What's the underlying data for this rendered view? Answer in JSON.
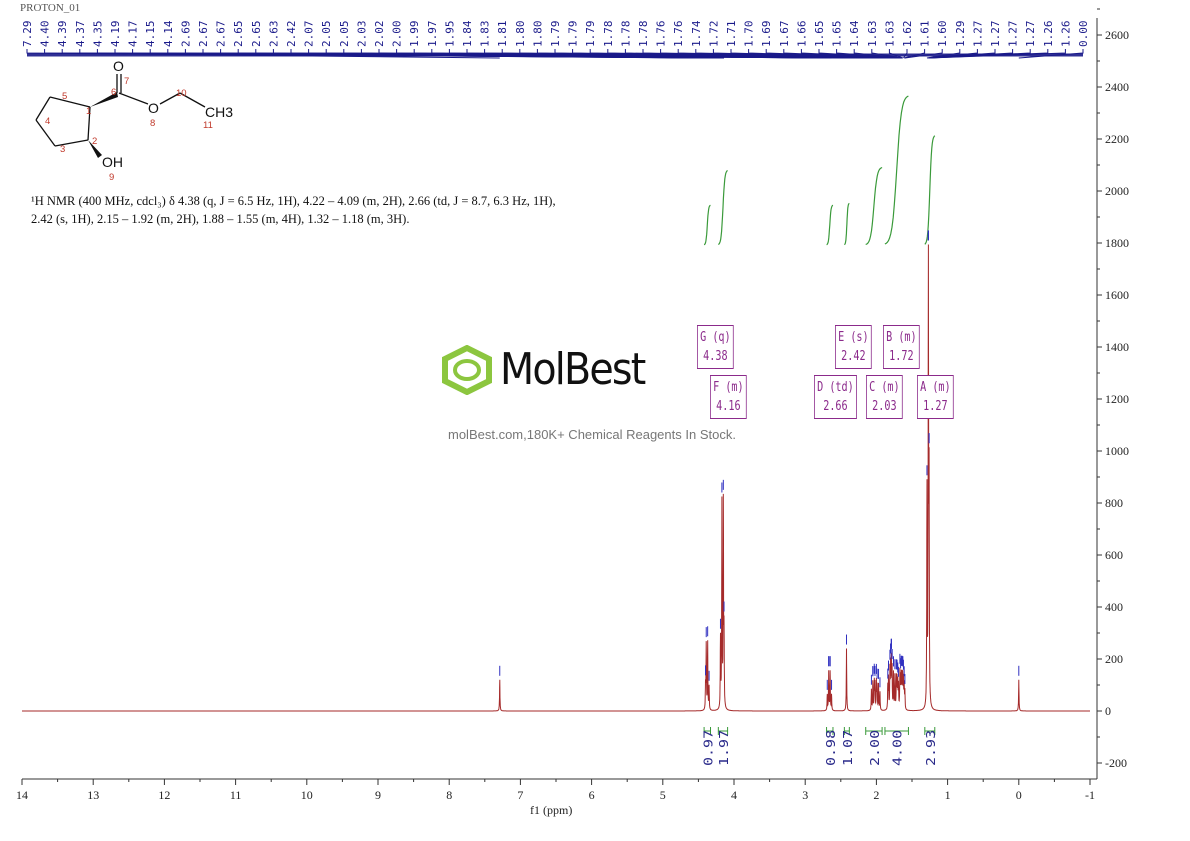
{
  "chart_data": {
    "type": "line",
    "title": "PROTON_01",
    "xlabel": "f1 (ppm)",
    "ylabel": "",
    "xlim": [
      14,
      -1
    ],
    "ylim": [
      -250,
      2650
    ],
    "x_reversed": true,
    "grid": false,
    "x_ticks": [
      "14",
      "13",
      "12",
      "11",
      "10",
      "9",
      "8",
      "7",
      "6",
      "5",
      "4",
      "3",
      "2",
      "1",
      "0",
      "-1"
    ],
    "y_ticks": [
      "-200",
      "0",
      "200",
      "400",
      "600",
      "800",
      "1000",
      "1200",
      "1400",
      "1600",
      "1800",
      "2000",
      "2200",
      "2400",
      "2600"
    ],
    "colors": {
      "spectrum": "#a52a2a",
      "peak_marker": "#1a1a9a",
      "integral": "#3a9a3a",
      "multiplet": "#8b2a8b",
      "peak_label": "#1a1a8a"
    },
    "peak_labels": [
      "7.29",
      "4.40",
      "4.39",
      "4.37",
      "4.35",
      "4.19",
      "4.17",
      "4.15",
      "4.14",
      "2.69",
      "2.67",
      "2.67",
      "2.65",
      "2.65",
      "2.63",
      "2.42",
      "2.07",
      "2.05",
      "2.05",
      "2.03",
      "2.02",
      "2.00",
      "1.99",
      "1.97",
      "1.95",
      "1.84",
      "1.83",
      "1.81",
      "1.80",
      "1.80",
      "1.79",
      "1.79",
      "1.79",
      "1.78",
      "1.78",
      "1.78",
      "1.76",
      "1.76",
      "1.74",
      "1.72",
      "1.71",
      "1.70",
      "1.69",
      "1.67",
      "1.66",
      "1.65",
      "1.65",
      "1.64",
      "1.63",
      "1.63",
      "1.62",
      "1.61",
      "1.60",
      "1.29",
      "1.27",
      "1.27",
      "1.27",
      "1.27",
      "1.26",
      "1.26",
      "0.00"
    ],
    "peaks": [
      {
        "ppm": 7.29,
        "intensity": 120
      },
      {
        "ppm": 4.4,
        "intensity": 90
      },
      {
        "ppm": 4.39,
        "intensity": 250
      },
      {
        "ppm": 4.37,
        "intensity": 260
      },
      {
        "ppm": 4.35,
        "intensity": 90
      },
      {
        "ppm": 4.19,
        "intensity": 270
      },
      {
        "ppm": 4.17,
        "intensity": 790
      },
      {
        "ppm": 4.15,
        "intensity": 780
      },
      {
        "ppm": 4.14,
        "intensity": 270
      },
      {
        "ppm": 2.69,
        "intensity": 60
      },
      {
        "ppm": 2.67,
        "intensity": 75
      },
      {
        "ppm": 2.67,
        "intensity": 75
      },
      {
        "ppm": 2.65,
        "intensity": 80
      },
      {
        "ppm": 2.65,
        "intensity": 70
      },
      {
        "ppm": 2.63,
        "intensity": 60
      },
      {
        "ppm": 2.42,
        "intensity": 240
      },
      {
        "ppm": 2.07,
        "intensity": 80
      },
      {
        "ppm": 2.05,
        "intensity": 55
      },
      {
        "ppm": 2.05,
        "intensity": 55
      },
      {
        "ppm": 2.03,
        "intensity": 110
      },
      {
        "ppm": 2.02,
        "intensity": 100
      },
      {
        "ppm": 2.0,
        "intensity": 110
      },
      {
        "ppm": 1.99,
        "intensity": 90
      },
      {
        "ppm": 1.97,
        "intensity": 100
      },
      {
        "ppm": 1.95,
        "intensity": 70
      },
      {
        "ppm": 1.84,
        "intensity": 90
      },
      {
        "ppm": 1.83,
        "intensity": 120
      },
      {
        "ppm": 1.81,
        "intensity": 150
      },
      {
        "ppm": 1.8,
        "intensity": 80
      },
      {
        "ppm": 1.8,
        "intensity": 80
      },
      {
        "ppm": 1.79,
        "intensity": 60
      },
      {
        "ppm": 1.79,
        "intensity": 60
      },
      {
        "ppm": 1.79,
        "intensity": 60
      },
      {
        "ppm": 1.78,
        "intensity": 50
      },
      {
        "ppm": 1.78,
        "intensity": 50
      },
      {
        "ppm": 1.78,
        "intensity": 50
      },
      {
        "ppm": 1.76,
        "intensity": 70
      },
      {
        "ppm": 1.76,
        "intensity": 70
      },
      {
        "ppm": 1.74,
        "intensity": 130
      },
      {
        "ppm": 1.72,
        "intensity": 120
      },
      {
        "ppm": 1.71,
        "intensity": 110
      },
      {
        "ppm": 1.7,
        "intensity": 100
      },
      {
        "ppm": 1.69,
        "intensity": 90
      },
      {
        "ppm": 1.67,
        "intensity": 140
      },
      {
        "ppm": 1.66,
        "intensity": 110
      },
      {
        "ppm": 1.65,
        "intensity": 60
      },
      {
        "ppm": 1.65,
        "intensity": 60
      },
      {
        "ppm": 1.64,
        "intensity": 120
      },
      {
        "ppm": 1.63,
        "intensity": 60
      },
      {
        "ppm": 1.63,
        "intensity": 60
      },
      {
        "ppm": 1.62,
        "intensity": 110
      },
      {
        "ppm": 1.61,
        "intensity": 90
      },
      {
        "ppm": 1.6,
        "intensity": 70
      },
      {
        "ppm": 1.29,
        "intensity": 830
      },
      {
        "ppm": 1.27,
        "intensity": 420
      },
      {
        "ppm": 1.27,
        "intensity": 420
      },
      {
        "ppm": 1.27,
        "intensity": 420
      },
      {
        "ppm": 1.27,
        "intensity": 420
      },
      {
        "ppm": 1.26,
        "intensity": 410
      },
      {
        "ppm": 1.26,
        "intensity": 410
      },
      {
        "ppm": 0.0,
        "intensity": 120
      }
    ],
    "integrals": [
      {
        "from": 4.42,
        "to": 4.33,
        "value": "0.97"
      },
      {
        "from": 4.22,
        "to": 4.09,
        "value": "1.97"
      },
      {
        "from": 2.7,
        "to": 2.61,
        "value": "0.98"
      },
      {
        "from": 2.45,
        "to": 2.38,
        "value": "1.07"
      },
      {
        "from": 2.15,
        "to": 1.92,
        "value": "2.00"
      },
      {
        "from": 1.88,
        "to": 1.55,
        "value": "4.00"
      },
      {
        "from": 1.32,
        "to": 1.18,
        "value": "2.93"
      }
    ],
    "multiplets": [
      {
        "label": "G (q)",
        "shift": "4.38"
      },
      {
        "label": "F (m)",
        "shift": "4.16"
      },
      {
        "label": "E (s)",
        "shift": "2.42"
      },
      {
        "label": "D (td)",
        "shift": "2.66"
      },
      {
        "label": "B (m)",
        "shift": "1.72"
      },
      {
        "label": "C (m)",
        "shift": "2.03"
      },
      {
        "label": "A (m)",
        "shift": "1.27"
      }
    ]
  },
  "structure": {
    "atoms": {
      "o_carbonyl": "O",
      "o_ester": "O",
      "methyl": "CH3",
      "hydroxyl": "OH"
    },
    "numbers": [
      "1",
      "2",
      "3",
      "4",
      "5",
      "6",
      "7",
      "8",
      "9",
      "10",
      "11"
    ]
  },
  "nmr_description": {
    "line1": "¹H NMR (400 MHz, cdcl₃) δ 4.38 (q, J = 6.5 Hz, 1H), 4.22 – 4.09 (m, 2H), 2.66 (td, J = 8.7, 6.3 Hz, 1H),",
    "line2": "2.42 (s, 1H), 2.15 – 1.92 (m, 2H), 1.88 – 1.55 (m, 4H), 1.32 – 1.18 (m, 3H)."
  },
  "watermark": {
    "brand": "MolBest",
    "tagline": "molBest.com,180K+ Chemical Reagents In Stock."
  }
}
